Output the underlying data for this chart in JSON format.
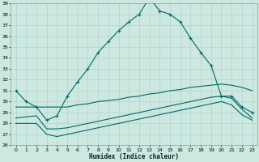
{
  "background_color": "#cce8e0",
  "grid_color": "#b0d4cc",
  "line_color": "#006868",
  "xlabel": "Humidex (Indice chaleur)",
  "xmin": -0.5,
  "xmax": 23.5,
  "ymin": 26,
  "ymax": 39,
  "x_ticks": [
    0,
    1,
    2,
    3,
    4,
    5,
    6,
    7,
    8,
    9,
    10,
    11,
    12,
    13,
    14,
    15,
    16,
    17,
    18,
    19,
    20,
    21,
    22,
    23
  ],
  "y_ticks": [
    26,
    27,
    28,
    29,
    30,
    31,
    32,
    33,
    34,
    35,
    36,
    37,
    38,
    39
  ],
  "series1_x": [
    0,
    1,
    2,
    3,
    4,
    5,
    6,
    7,
    8,
    9,
    10,
    11,
    12,
    13,
    14,
    15,
    16,
    17,
    18,
    19,
    20,
    21,
    22,
    23
  ],
  "series1_y": [
    31.0,
    30.0,
    29.5,
    28.3,
    28.7,
    30.5,
    31.8,
    33.0,
    34.5,
    35.5,
    36.5,
    37.3,
    38.0,
    39.5,
    38.3,
    38.0,
    37.3,
    35.8,
    34.5,
    33.3,
    30.5,
    30.5,
    29.5,
    29.0
  ],
  "series2_x": [
    0,
    1,
    2,
    3,
    4,
    5,
    6,
    7,
    8,
    9,
    10,
    11,
    12,
    13,
    14,
    15,
    16,
    17,
    18,
    19,
    20,
    21,
    22,
    23
  ],
  "series2_y": [
    29.5,
    29.5,
    29.5,
    29.5,
    29.5,
    29.5,
    29.7,
    29.8,
    30.0,
    30.1,
    30.2,
    30.4,
    30.5,
    30.7,
    30.8,
    31.0,
    31.1,
    31.3,
    31.4,
    31.5,
    31.6,
    31.5,
    31.3,
    31.0
  ],
  "series3_x": [
    0,
    1,
    2,
    3,
    4,
    5,
    6,
    7,
    8,
    9,
    10,
    11,
    12,
    13,
    14,
    15,
    16,
    17,
    18,
    19,
    20,
    21,
    22,
    23
  ],
  "series3_y": [
    28.5,
    28.6,
    28.7,
    27.5,
    27.5,
    27.6,
    27.8,
    28.0,
    28.2,
    28.4,
    28.6,
    28.8,
    29.0,
    29.2,
    29.4,
    29.6,
    29.8,
    30.0,
    30.2,
    30.4,
    30.5,
    30.3,
    29.3,
    28.5
  ],
  "series4_x": [
    0,
    1,
    2,
    3,
    4,
    5,
    6,
    7,
    8,
    9,
    10,
    11,
    12,
    13,
    14,
    15,
    16,
    17,
    18,
    19,
    20,
    21,
    22,
    23
  ],
  "series4_y": [
    28.0,
    28.0,
    28.0,
    27.0,
    26.8,
    27.0,
    27.2,
    27.4,
    27.6,
    27.8,
    28.0,
    28.2,
    28.4,
    28.6,
    28.8,
    29.0,
    29.2,
    29.4,
    29.6,
    29.8,
    30.0,
    29.7,
    28.8,
    28.3
  ]
}
